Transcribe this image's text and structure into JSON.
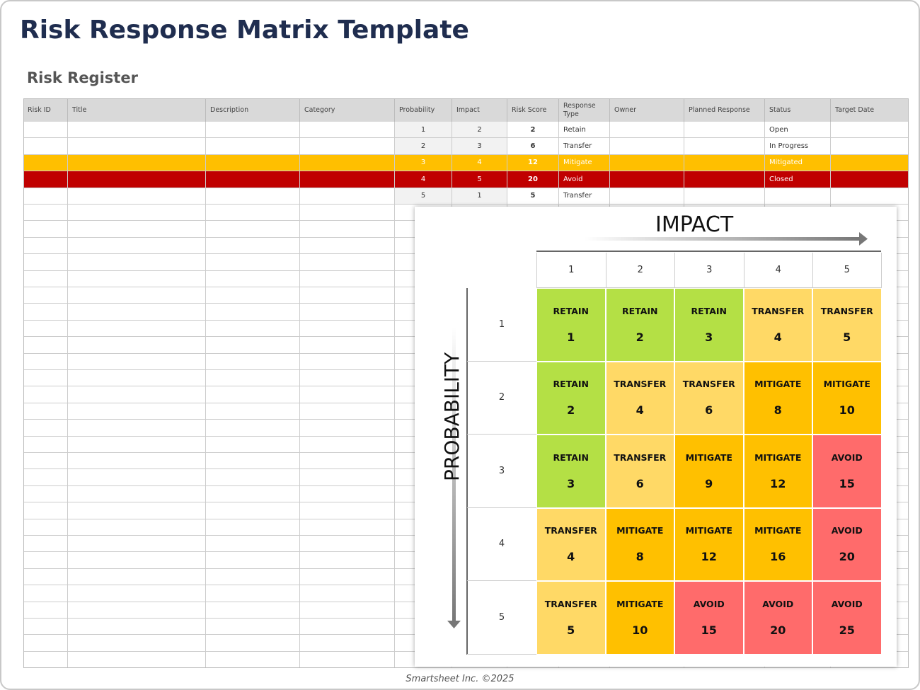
{
  "header": {
    "title": "Risk Response Matrix Template"
  },
  "register": {
    "title": "Risk Register",
    "columns": [
      "Risk ID",
      "Title",
      "Description",
      "Category",
      "Probability",
      "Impact",
      "Risk Score",
      "Response Type",
      "Owner",
      "Planned Response",
      "Status",
      "Target Date"
    ],
    "rows": [
      {
        "probability": 1,
        "impact": 2,
        "risk_score": 2,
        "response_type": "Retain",
        "status": "Open"
      },
      {
        "probability": 2,
        "impact": 3,
        "risk_score": 6,
        "response_type": "Transfer",
        "status": "In Progress"
      },
      {
        "probability": 3,
        "impact": 4,
        "risk_score": 12,
        "response_type": "Mitigate",
        "status": "Mitigated",
        "highlight": "#ffbf00"
      },
      {
        "probability": 4,
        "impact": 5,
        "risk_score": 20,
        "response_type": "Avoid",
        "status": "Closed",
        "highlight": "#c00000"
      },
      {
        "probability": 5,
        "impact": 1,
        "risk_score": 5,
        "response_type": "Transfer"
      }
    ]
  },
  "matrix": {
    "impact_label": "IMPACT",
    "probability_label": "PROBABILITY",
    "impact_levels": [
      1,
      2,
      3,
      4,
      5
    ],
    "probability_levels": [
      1,
      2,
      3,
      4,
      5
    ],
    "colors": {
      "RETAIN": "#b4e045",
      "TRANSFER": "#ffd966",
      "MITIGATE": "#ffc000",
      "AVOID": "#ff6b6b"
    },
    "cells": [
      [
        {
          "response": "RETAIN",
          "score": 1
        },
        {
          "response": "RETAIN",
          "score": 2
        },
        {
          "response": "RETAIN",
          "score": 3
        },
        {
          "response": "TRANSFER",
          "score": 4
        },
        {
          "response": "TRANSFER",
          "score": 5
        }
      ],
      [
        {
          "response": "RETAIN",
          "score": 2
        },
        {
          "response": "TRANSFER",
          "score": 4
        },
        {
          "response": "TRANSFER",
          "score": 6
        },
        {
          "response": "MITIGATE",
          "score": 8
        },
        {
          "response": "MITIGATE",
          "score": 10
        }
      ],
      [
        {
          "response": "RETAIN",
          "score": 3
        },
        {
          "response": "TRANSFER",
          "score": 6
        },
        {
          "response": "MITIGATE",
          "score": 9
        },
        {
          "response": "MITIGATE",
          "score": 12
        },
        {
          "response": "AVOID",
          "score": 15
        }
      ],
      [
        {
          "response": "TRANSFER",
          "score": 4
        },
        {
          "response": "MITIGATE",
          "score": 8
        },
        {
          "response": "MITIGATE",
          "score": 12
        },
        {
          "response": "MITIGATE",
          "score": 16
        },
        {
          "response": "AVOID",
          "score": 20
        }
      ],
      [
        {
          "response": "TRANSFER",
          "score": 5
        },
        {
          "response": "MITIGATE",
          "score": 10
        },
        {
          "response": "AVOID",
          "score": 15
        },
        {
          "response": "AVOID",
          "score": 20
        },
        {
          "response": "AVOID",
          "score": 25
        }
      ]
    ]
  },
  "footer": {
    "text": "Smartsheet Inc. ©2025"
  }
}
